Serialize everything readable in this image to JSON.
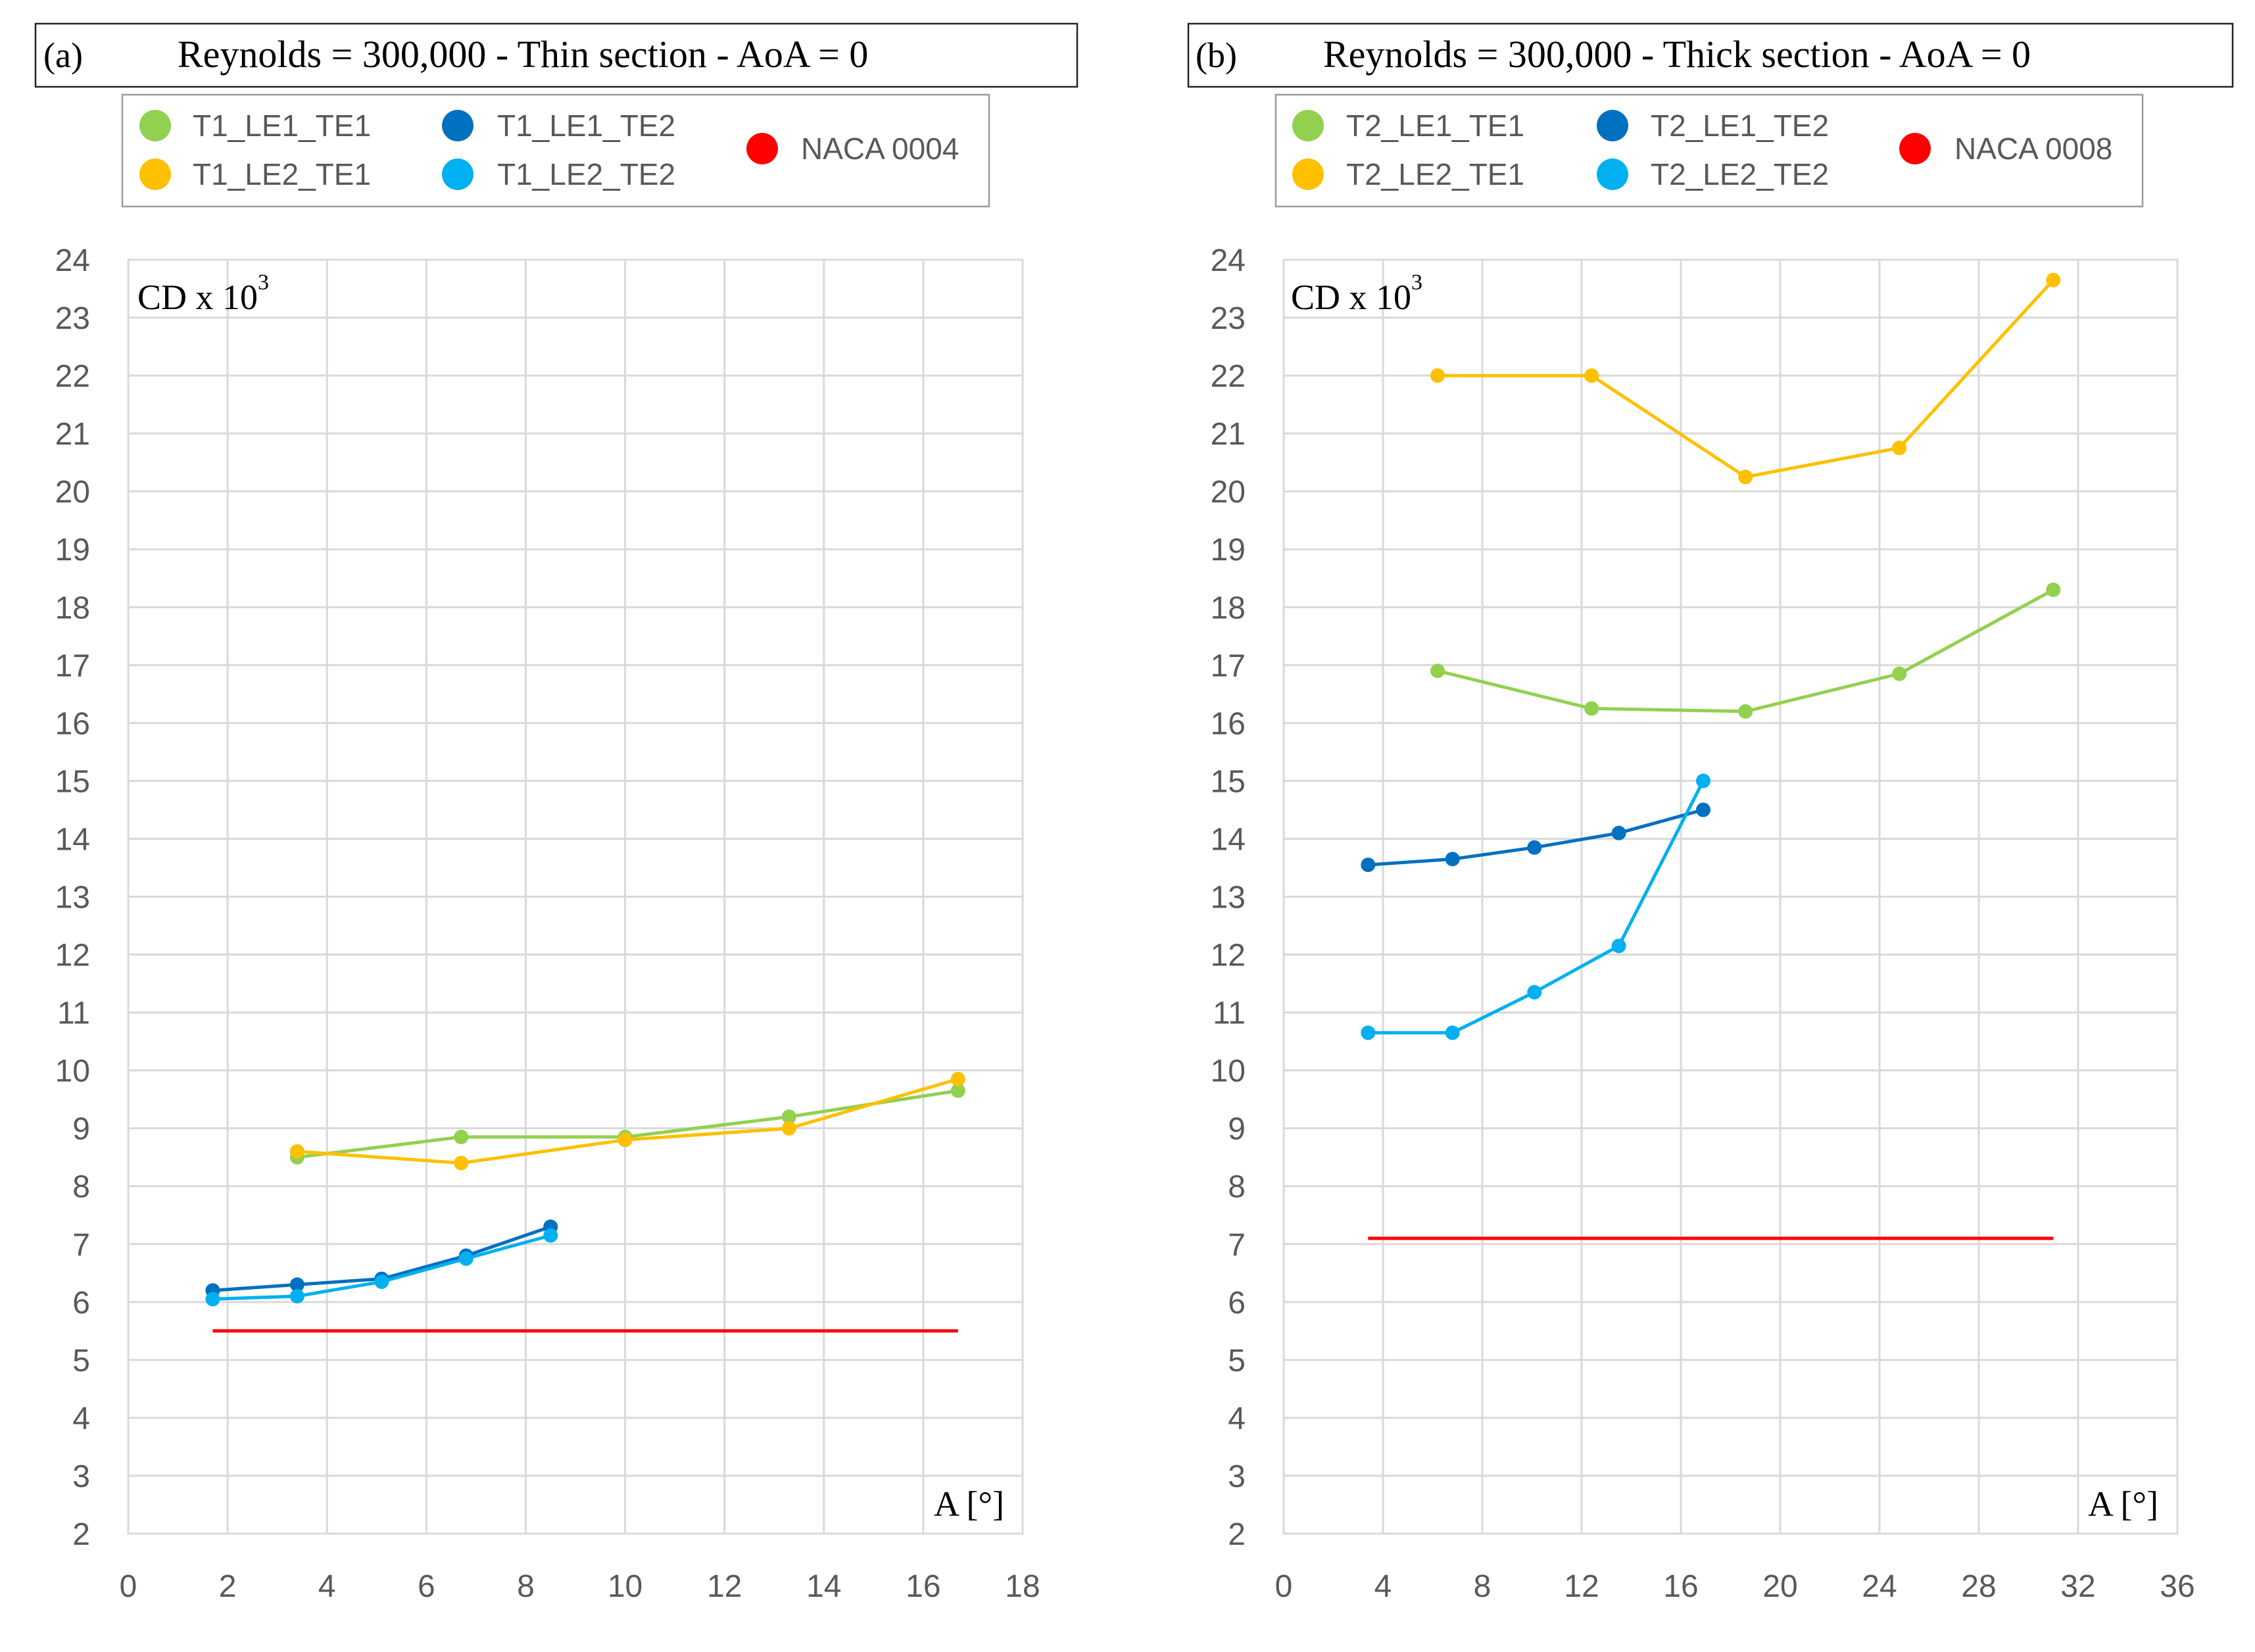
{
  "chart_data": [
    {
      "type": "line",
      "panel_label": "(a)",
      "title": "Reynolds = 300,000 - Thin section - AoA = 0",
      "ylabel_main": "CD",
      "ylabel_suffix": " x 10",
      "ylabel_exp": "3",
      "xlabel": "A [°]",
      "xlim": [
        0,
        18
      ],
      "ylim": [
        2,
        24
      ],
      "xticks": [
        0,
        2,
        4,
        6,
        8,
        10,
        12,
        14,
        16,
        18
      ],
      "yticks": [
        2,
        3,
        4,
        5,
        6,
        7,
        8,
        9,
        10,
        11,
        12,
        13,
        14,
        15,
        16,
        17,
        18,
        19,
        20,
        21,
        22,
        23,
        24
      ],
      "grid": true,
      "legend_position": "top",
      "series": [
        {
          "name": "T1_LE1_TE1",
          "color": "#92d050",
          "x": [
            3.4,
            6.7,
            10.0,
            13.3,
            16.7
          ],
          "y": [
            8.5,
            8.85,
            8.85,
            9.2,
            9.65
          ],
          "markers": true
        },
        {
          "name": "T1_LE2_TE1",
          "color": "#ffc000",
          "x": [
            3.4,
            6.7,
            10.0,
            13.3,
            16.7
          ],
          "y": [
            8.6,
            8.4,
            8.8,
            9.0,
            9.85
          ],
          "markers": true
        },
        {
          "name": "T1_LE1_TE2",
          "color": "#0070c0",
          "x": [
            1.7,
            3.4,
            5.1,
            6.8,
            8.5
          ],
          "y": [
            6.2,
            6.3,
            6.4,
            6.8,
            7.3
          ],
          "markers": true
        },
        {
          "name": "T1_LE2_TE2",
          "color": "#00b0f0",
          "x": [
            1.7,
            3.4,
            5.1,
            6.8,
            8.5
          ],
          "y": [
            6.05,
            6.1,
            6.35,
            6.75,
            7.15
          ],
          "markers": true
        },
        {
          "name": "NACA 0004",
          "color": "#ff0000",
          "x": [
            1.7,
            16.7
          ],
          "y": [
            5.5,
            5.5
          ],
          "markers": false
        }
      ]
    },
    {
      "type": "line",
      "panel_label": "(b)",
      "title": "Reynolds = 300,000 - Thick section - AoA = 0",
      "ylabel_main": "CD",
      "ylabel_suffix": " x 10",
      "ylabel_exp": "3",
      "xlabel": "A [°]",
      "xlim": [
        0,
        36
      ],
      "ylim": [
        2,
        24
      ],
      "xticks": [
        0,
        4,
        8,
        12,
        16,
        20,
        24,
        28,
        32,
        36
      ],
      "yticks": [
        2,
        3,
        4,
        5,
        6,
        7,
        8,
        9,
        10,
        11,
        12,
        13,
        14,
        15,
        16,
        17,
        18,
        19,
        20,
        21,
        22,
        23,
        24
      ],
      "grid": true,
      "legend_position": "top",
      "series": [
        {
          "name": "T2_LE1_TE1",
          "color": "#92d050",
          "x": [
            6.2,
            12.4,
            18.6,
            24.8,
            31.0
          ],
          "y": [
            16.9,
            16.25,
            16.2,
            16.85,
            18.3
          ],
          "markers": true
        },
        {
          "name": "T2_LE2_TE1",
          "color": "#ffc000",
          "x": [
            6.2,
            12.4,
            18.6,
            24.8,
            31.0
          ],
          "y": [
            22.0,
            22.0,
            20.25,
            20.75,
            23.65
          ],
          "markers": true
        },
        {
          "name": "T2_LE1_TE2",
          "color": "#0070c0",
          "x": [
            3.4,
            6.8,
            10.1,
            13.5,
            16.9
          ],
          "y": [
            13.55,
            13.65,
            13.85,
            14.1,
            14.5
          ],
          "markers": true
        },
        {
          "name": "T2_LE2_TE2",
          "color": "#00b0f0",
          "x": [
            3.4,
            6.8,
            10.1,
            13.5,
            16.9
          ],
          "y": [
            10.65,
            10.65,
            11.35,
            12.15,
            15.0
          ],
          "markers": true
        },
        {
          "name": "NACA 0008",
          "color": "#ff0000",
          "x": [
            3.4,
            31.0
          ],
          "y": [
            7.1,
            7.1
          ],
          "markers": false
        }
      ]
    }
  ]
}
